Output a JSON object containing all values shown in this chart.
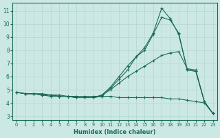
{
  "xlabel": "Humidex (Indice chaleur)",
  "bg_color": "#cce8e4",
  "line_color": "#1a6b5a",
  "grid_color": "#b8d8d4",
  "x_ticks": [
    0,
    1,
    2,
    3,
    4,
    5,
    6,
    7,
    8,
    9,
    10,
    11,
    12,
    13,
    14,
    15,
    16,
    17,
    18,
    19,
    20,
    21,
    22,
    23
  ],
  "y_ticks": [
    3,
    4,
    5,
    6,
    7,
    8,
    9,
    10,
    11
  ],
  "xlim": [
    -0.5,
    23.5
  ],
  "ylim": [
    2.7,
    11.6
  ],
  "series": [
    [
      4.8,
      4.7,
      4.7,
      4.6,
      4.6,
      4.5,
      4.5,
      4.4,
      4.4,
      4.4,
      4.5,
      5.1,
      5.8,
      6.5,
      7.5,
      8.2,
      9.3,
      11.2,
      10.4,
      9.2,
      6.5,
      6.4,
      4.1,
      3.2
    ],
    [
      4.8,
      4.7,
      4.7,
      4.6,
      4.6,
      4.5,
      4.5,
      4.4,
      4.4,
      4.4,
      4.6,
      5.2,
      6.0,
      6.8,
      7.5,
      8.0,
      9.2,
      10.5,
      10.3,
      9.3,
      6.5,
      6.4,
      4.1,
      3.2
    ],
    [
      4.8,
      4.7,
      4.7,
      4.6,
      4.5,
      4.5,
      4.5,
      4.4,
      4.4,
      4.4,
      4.6,
      5.0,
      5.5,
      6.0,
      6.4,
      6.8,
      7.2,
      7.6,
      7.8,
      7.9,
      6.6,
      6.5,
      4.1,
      3.2
    ],
    [
      4.8,
      4.7,
      4.7,
      4.7,
      4.6,
      4.6,
      4.5,
      4.5,
      4.5,
      4.5,
      4.5,
      4.5,
      4.4,
      4.4,
      4.4,
      4.4,
      4.4,
      4.4,
      4.3,
      4.3,
      4.2,
      4.1,
      4.0,
      3.2
    ]
  ]
}
